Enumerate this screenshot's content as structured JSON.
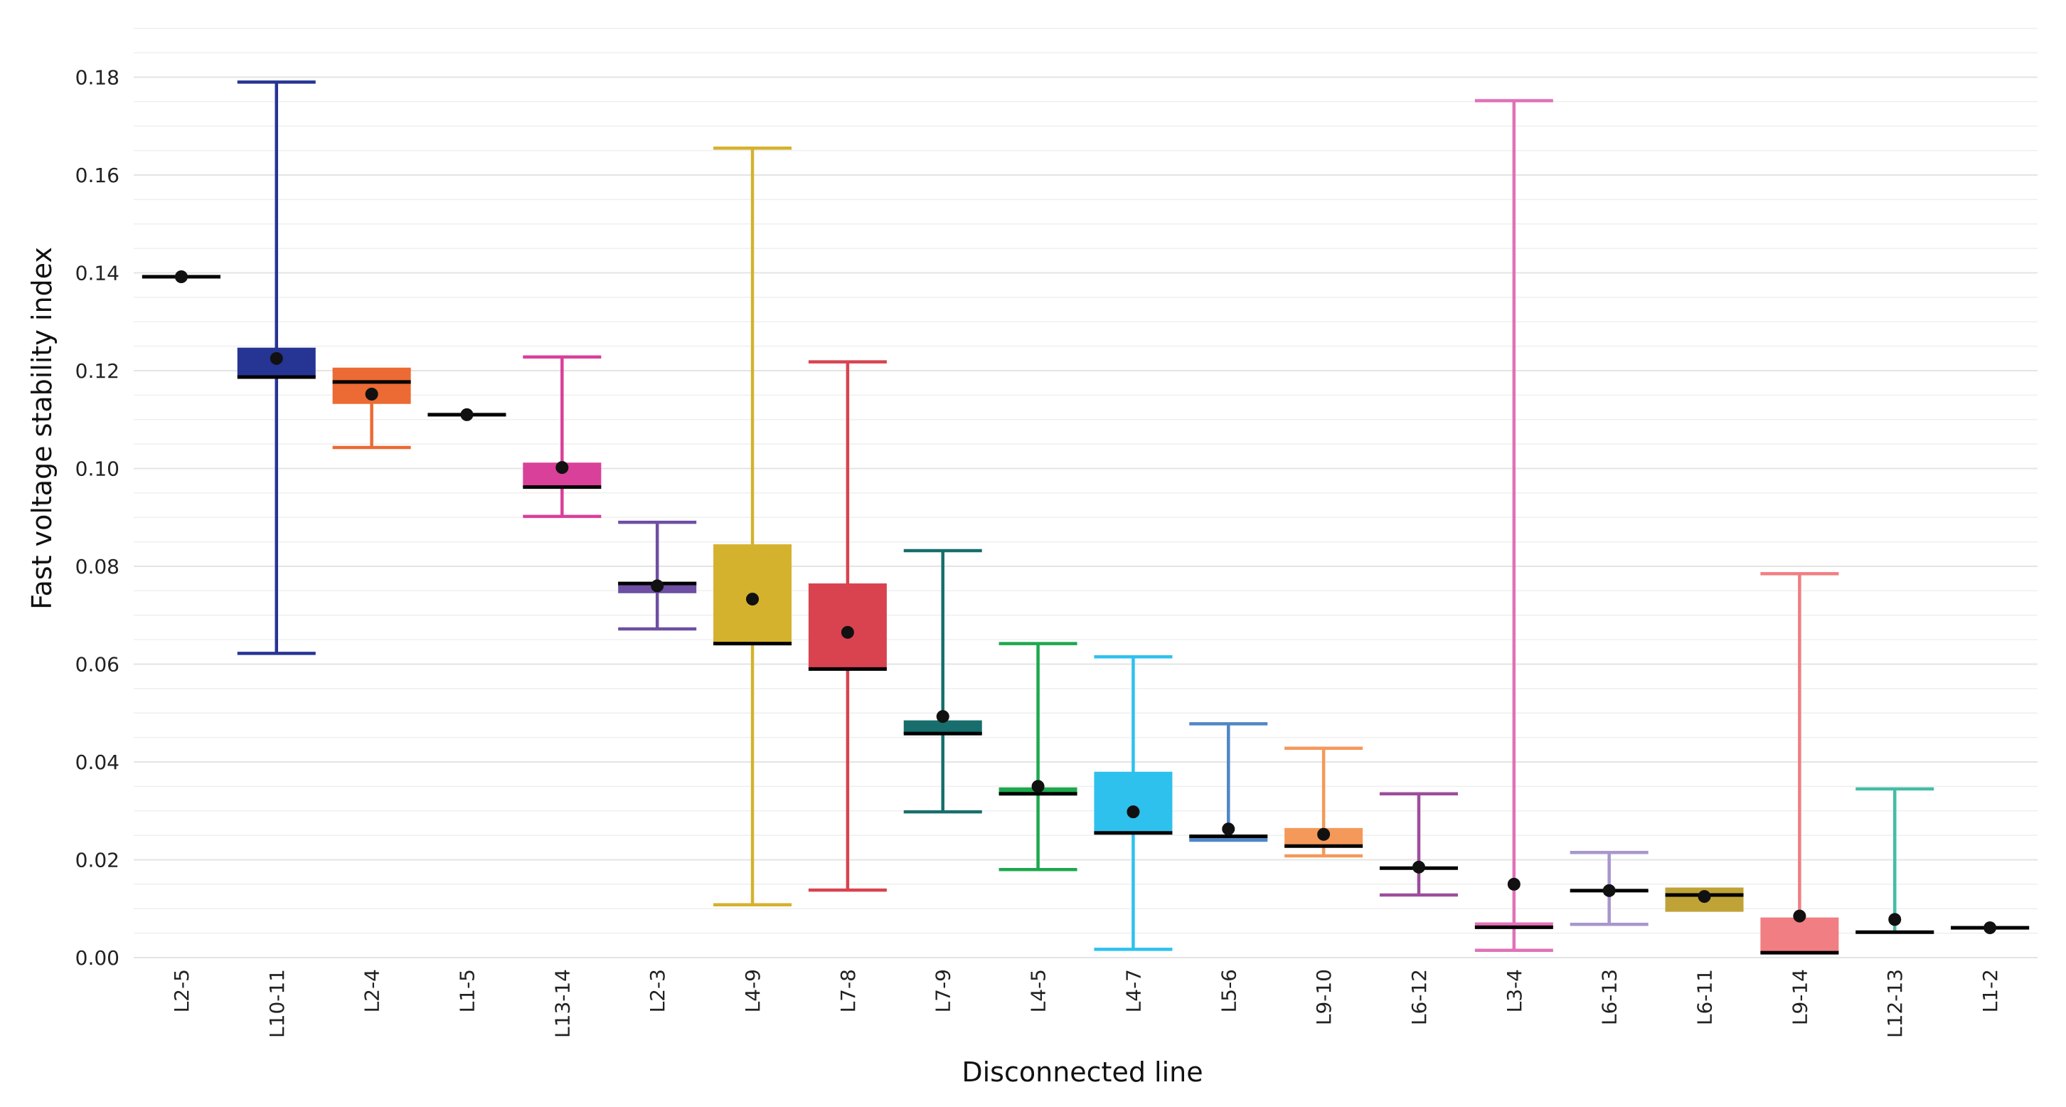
{
  "chart_data": {
    "type": "box",
    "title": "",
    "xlabel": "Disconnected line",
    "ylabel": "Fast voltage stability index",
    "ylim": [
      0,
      0.19
    ],
    "y_ticks": [
      0.0,
      0.02,
      0.04,
      0.06,
      0.08,
      0.1,
      0.12,
      0.14,
      0.16,
      0.18
    ],
    "y_tick_labels": [
      "0.00",
      "0.02",
      "0.04",
      "0.06",
      "0.08",
      "0.10",
      "0.12",
      "0.14",
      "0.16",
      "0.18"
    ],
    "grid": true,
    "legend": "none",
    "categories": [
      "L2-5",
      "L10-11",
      "L2-4",
      "L1-5",
      "L13-14",
      "L2-3",
      "L4-9",
      "L7-8",
      "L7-9",
      "L4-5",
      "L4-7",
      "L5-6",
      "L9-10",
      "L6-12",
      "L3-4",
      "L6-13",
      "L6-11",
      "L9-14",
      "L12-13",
      "L1-2"
    ],
    "boxes": [
      {
        "label": "L2-5",
        "min": 0.1392,
        "q1": 0.1392,
        "median": 0.1392,
        "q3": 0.1392,
        "max": 0.1392,
        "mean": 0.1392,
        "color": "#000000"
      },
      {
        "label": "L10-11",
        "min": 0.0622,
        "q1": 0.1187,
        "median": 0.1187,
        "q3": 0.1247,
        "max": 0.179,
        "mean": 0.1225,
        "color": "#263593"
      },
      {
        "label": "L2-4",
        "min": 0.1043,
        "q1": 0.1132,
        "median": 0.1177,
        "q3": 0.1203,
        "max": 0.1203,
        "mean": 0.1152,
        "color": "#EC6A34"
      },
      {
        "label": "L1-5",
        "min": 0.111,
        "q1": 0.111,
        "median": 0.111,
        "q3": 0.111,
        "max": 0.111,
        "mean": 0.111,
        "color": "#000000"
      },
      {
        "label": "L13-14",
        "min": 0.0902,
        "q1": 0.0962,
        "median": 0.0962,
        "q3": 0.1012,
        "max": 0.1228,
        "mean": 0.1002,
        "color": "#D9409A"
      },
      {
        "label": "L2-3",
        "min": 0.0672,
        "q1": 0.0745,
        "median": 0.0765,
        "q3": 0.0768,
        "max": 0.089,
        "mean": 0.076,
        "color": "#6E4FA3"
      },
      {
        "label": "L4-9",
        "min": 0.0108,
        "q1": 0.0642,
        "median": 0.0642,
        "q3": 0.0845,
        "max": 0.1655,
        "mean": 0.0733,
        "color": "#D5B22E"
      },
      {
        "label": "L7-8",
        "min": 0.0138,
        "q1": 0.059,
        "median": 0.059,
        "q3": 0.0765,
        "max": 0.1218,
        "mean": 0.0665,
        "color": "#D8434F"
      },
      {
        "label": "L7-9",
        "min": 0.0298,
        "q1": 0.0458,
        "median": 0.0458,
        "q3": 0.0485,
        "max": 0.0832,
        "mean": 0.0493,
        "color": "#176E6C"
      },
      {
        "label": "L4-5",
        "min": 0.018,
        "q1": 0.0335,
        "median": 0.0335,
        "q3": 0.0348,
        "max": 0.0642,
        "mean": 0.035,
        "color": "#1DA84E"
      },
      {
        "label": "L4-7",
        "min": 0.0017,
        "q1": 0.0255,
        "median": 0.0255,
        "q3": 0.038,
        "max": 0.0615,
        "mean": 0.0298,
        "color": "#2EC1EE"
      },
      {
        "label": "L5-6",
        "min": 0.024,
        "q1": 0.024,
        "median": 0.0248,
        "q3": 0.0248,
        "max": 0.0478,
        "mean": 0.0263,
        "color": "#4F86C6"
      },
      {
        "label": "L9-10",
        "min": 0.0208,
        "q1": 0.0225,
        "median": 0.0228,
        "q3": 0.0265,
        "max": 0.0428,
        "mean": 0.0252,
        "color": "#F4995A"
      },
      {
        "label": "L6-12",
        "min": 0.0128,
        "q1": 0.0183,
        "median": 0.0183,
        "q3": 0.0183,
        "max": 0.0335,
        "mean": 0.0185,
        "color": "#9E4D9C"
      },
      {
        "label": "L3-4",
        "min": 0.0015,
        "q1": 0.0062,
        "median": 0.0062,
        "q3": 0.0072,
        "max": 0.1752,
        "mean": 0.015,
        "color": "#E171B7"
      },
      {
        "label": "L6-13",
        "min": 0.0068,
        "q1": 0.0137,
        "median": 0.0137,
        "q3": 0.0137,
        "max": 0.0215,
        "mean": 0.0137,
        "color": "#A896CC"
      },
      {
        "label": "L6-11",
        "min": 0.0097,
        "q1": 0.0097,
        "median": 0.0128,
        "q3": 0.014,
        "max": 0.014,
        "mean": 0.0125,
        "color": "#BFA337"
      },
      {
        "label": "L9-14",
        "min": 0.001,
        "q1": 0.001,
        "median": 0.001,
        "q3": 0.0082,
        "max": 0.0785,
        "mean": 0.0085,
        "color": "#F07E82"
      },
      {
        "label": "L12-13",
        "min": 0.0052,
        "q1": 0.0052,
        "median": 0.0052,
        "q3": 0.0052,
        "max": 0.0345,
        "mean": 0.0078,
        "color": "#45BCA6"
      },
      {
        "label": "L1-2",
        "min": 0.0061,
        "q1": 0.0061,
        "median": 0.0061,
        "q3": 0.0061,
        "max": 0.0061,
        "mean": 0.0061,
        "color": "#000000"
      }
    ],
    "median_color": "#000000",
    "mean_marker_color": "#111111"
  }
}
